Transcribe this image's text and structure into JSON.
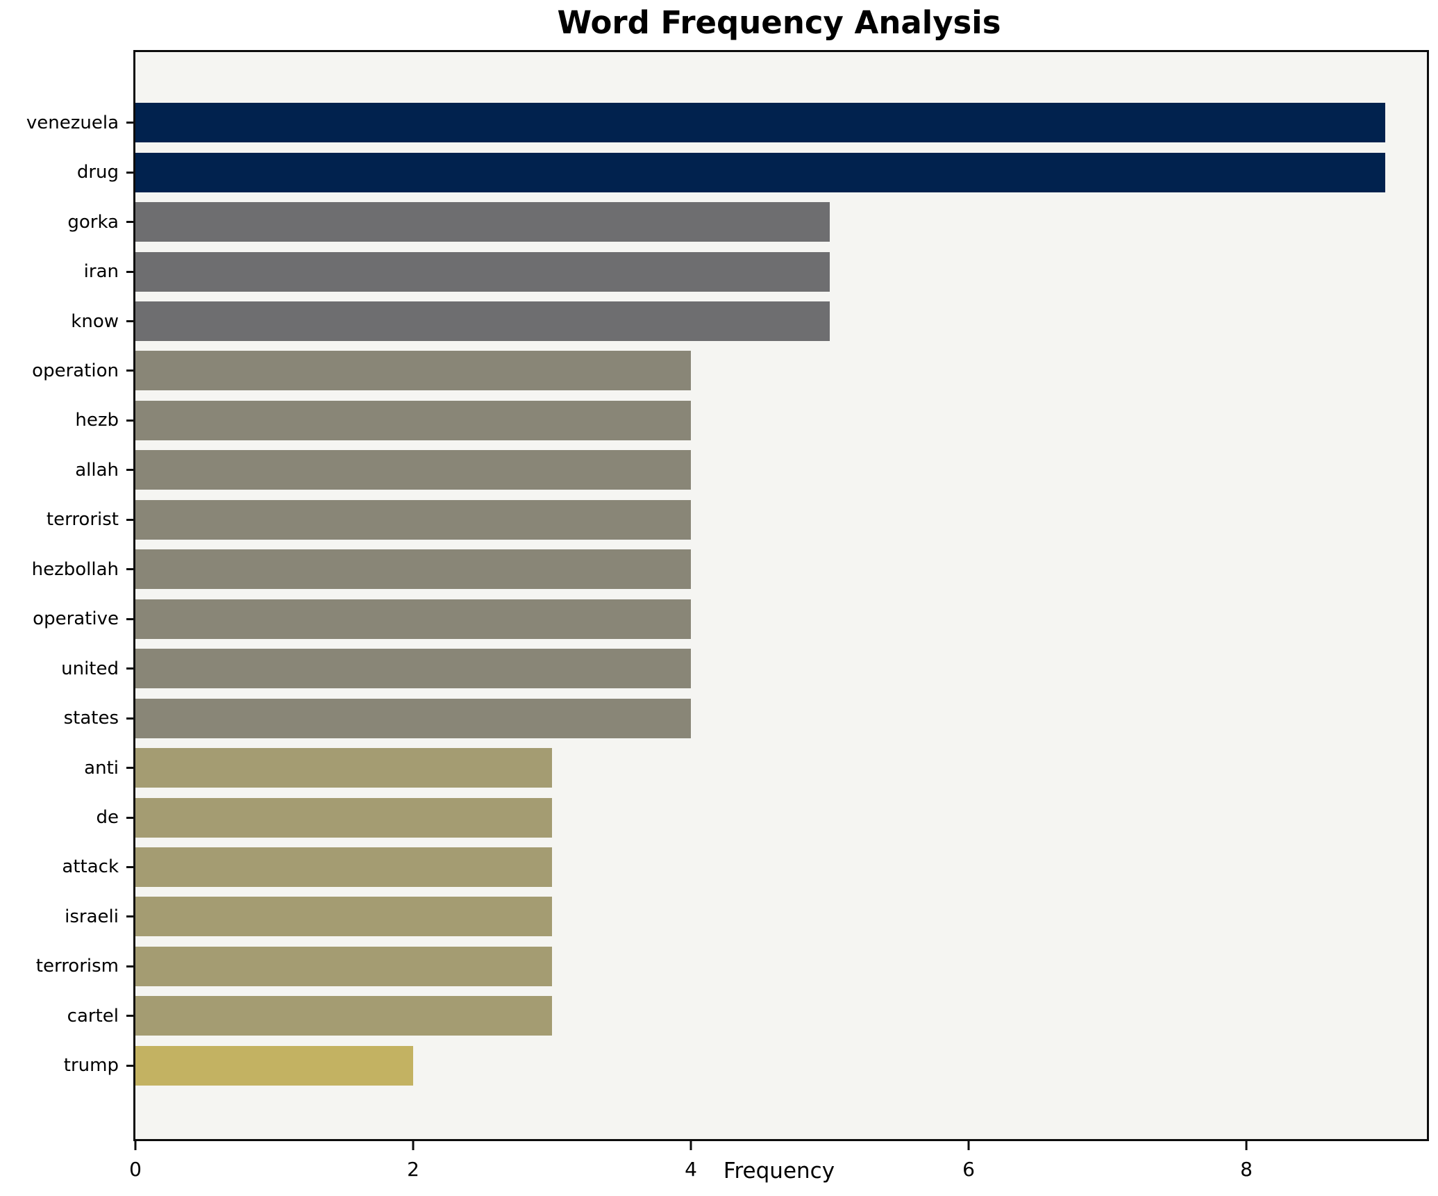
{
  "title": "Word Frequency Analysis",
  "xlabel": "Frequency",
  "chart_data": {
    "type": "bar",
    "orientation": "horizontal",
    "title": "Word Frequency Analysis",
    "xlabel": "Frequency",
    "ylabel": "",
    "categories": [
      "venezuela",
      "drug",
      "gorka",
      "iran",
      "know",
      "operation",
      "hezb",
      "allah",
      "terrorist",
      "hezbollah",
      "operative",
      "united",
      "states",
      "anti",
      "de",
      "attack",
      "israeli",
      "terrorism",
      "cartel",
      "trump"
    ],
    "values": [
      9,
      9,
      5,
      5,
      5,
      4,
      4,
      4,
      4,
      4,
      4,
      4,
      4,
      3,
      3,
      3,
      3,
      3,
      3,
      2
    ],
    "bar_colors": [
      "#01224e",
      "#01224e",
      "#6e6e70",
      "#6e6e70",
      "#6e6e70",
      "#898677",
      "#898677",
      "#898677",
      "#898677",
      "#898677",
      "#898677",
      "#898677",
      "#898677",
      "#a49c72",
      "#a49c72",
      "#a49c72",
      "#a49c72",
      "#a49c72",
      "#a49c72",
      "#c3b262"
    ],
    "xlim": [
      0,
      9.3
    ],
    "xticks": [
      0,
      2,
      4,
      6,
      8
    ],
    "grid": false,
    "legend": null,
    "plot_background": "#f5f5f2",
    "figure_background": "#ffffff",
    "spine_color": "#0d0d0d",
    "text_color": "#000000"
  }
}
